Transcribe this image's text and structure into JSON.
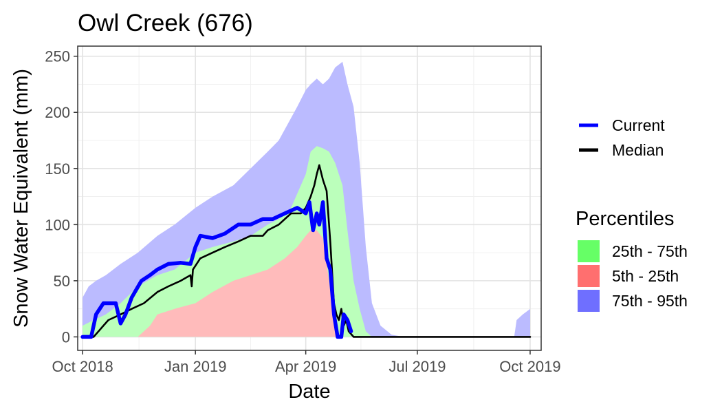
{
  "chart_data": {
    "type": "area",
    "title": "Owl Creek (676)",
    "xlabel": "Date",
    "ylabel": "Snow Water Equivalent (mm)",
    "xlim": [
      "2018-09-27",
      "2019-10-10"
    ],
    "ylim": [
      -12,
      259
    ],
    "x_ticks": [
      {
        "date": "2018-10-01",
        "label": "Oct 2018"
      },
      {
        "date": "2019-01-01",
        "label": "Jan 2019"
      },
      {
        "date": "2019-04-01",
        "label": "Apr 2019"
      },
      {
        "date": "2019-07-01",
        "label": "Jul 2019"
      },
      {
        "date": "2019-10-01",
        "label": "Oct 2019"
      }
    ],
    "y_ticks": [
      0,
      50,
      100,
      150,
      200,
      250
    ],
    "grid": true,
    "legend": {
      "position": "right",
      "lines": [
        {
          "name": "Current",
          "color": "#0000ff"
        },
        {
          "name": "Median",
          "color": "#000000"
        }
      ],
      "percentiles_title": "Percentiles",
      "bands": [
        {
          "name": "25th - 75th",
          "color": "#66ff66"
        },
        {
          "name": "5th - 25th",
          "color": "#ff6f6f"
        },
        {
          "name": "75th - 95th",
          "color": "#6f6fff"
        }
      ]
    },
    "band_upper_95": {
      "x": [
        "2018-10-01",
        "2018-10-06",
        "2018-10-12",
        "2018-10-20",
        "2018-11-01",
        "2018-11-15",
        "2018-12-01",
        "2018-12-15",
        "2019-01-01",
        "2019-01-15",
        "2019-02-01",
        "2019-02-15",
        "2019-03-01",
        "2019-03-10",
        "2019-03-20",
        "2019-03-25",
        "2019-04-01",
        "2019-04-05",
        "2019-04-10",
        "2019-04-15",
        "2019-04-20",
        "2019-04-25",
        "2019-05-01",
        "2019-05-05",
        "2019-05-10",
        "2019-05-15",
        "2019-05-20",
        "2019-05-25",
        "2019-06-01",
        "2019-06-10",
        "2019-06-20",
        "2019-06-30",
        "2019-09-18",
        "2019-09-20",
        "2019-09-25",
        "2019-10-01"
      ],
      "y": [
        35,
        45,
        50,
        55,
        65,
        75,
        90,
        100,
        115,
        125,
        135,
        150,
        165,
        175,
        195,
        205,
        220,
        225,
        230,
        225,
        230,
        240,
        245,
        225,
        205,
        155,
        80,
        30,
        10,
        2,
        0,
        0,
        0,
        15,
        20,
        25
      ]
    },
    "band_upper_75": {
      "x": [
        "2018-10-01",
        "2018-10-10",
        "2018-10-20",
        "2018-11-01",
        "2018-11-15",
        "2018-12-01",
        "2018-12-15",
        "2019-01-01",
        "2019-01-15",
        "2019-02-01",
        "2019-02-15",
        "2019-03-01",
        "2019-03-10",
        "2019-03-20",
        "2019-04-01",
        "2019-04-05",
        "2019-04-10",
        "2019-04-15",
        "2019-04-20",
        "2019-04-25",
        "2019-05-01",
        "2019-05-05",
        "2019-05-10",
        "2019-05-15",
        "2019-05-20",
        "2019-05-25",
        "2019-06-01",
        "2019-06-05"
      ],
      "y": [
        10,
        15,
        20,
        30,
        45,
        55,
        60,
        75,
        80,
        85,
        90,
        100,
        105,
        115,
        145,
        165,
        170,
        168,
        165,
        155,
        135,
        95,
        50,
        25,
        5,
        0,
        0,
        0
      ]
    },
    "band_lower_25": {
      "x": [
        "2018-10-01",
        "2018-11-15",
        "2018-11-25",
        "2018-12-01",
        "2018-12-15",
        "2019-01-01",
        "2019-01-15",
        "2019-02-01",
        "2019-02-15",
        "2019-03-01",
        "2019-03-15",
        "2019-03-25",
        "2019-04-01",
        "2019-04-05",
        "2019-04-10",
        "2019-04-15",
        "2019-04-20",
        "2019-04-25",
        "2019-05-01"
      ],
      "y": [
        0,
        0,
        10,
        20,
        25,
        30,
        40,
        50,
        55,
        60,
        70,
        80,
        90,
        95,
        95,
        88,
        50,
        5,
        0
      ]
    },
    "band_lower_5": {
      "x": [
        "2018-10-01",
        "2019-05-01"
      ],
      "y": [
        0,
        0
      ]
    },
    "series": [
      {
        "name": "Current",
        "color": "#0000ff",
        "x": [
          "2018-10-01",
          "2018-10-08",
          "2018-10-12",
          "2018-10-18",
          "2018-10-28",
          "2018-11-01",
          "2018-11-05",
          "2018-11-10",
          "2018-11-18",
          "2018-11-25",
          "2018-12-01",
          "2018-12-10",
          "2018-12-20",
          "2018-12-28",
          "2019-01-01",
          "2019-01-05",
          "2019-01-15",
          "2019-01-25",
          "2019-02-05",
          "2019-02-15",
          "2019-02-25",
          "2019-03-05",
          "2019-03-15",
          "2019-03-25",
          "2019-03-28",
          "2019-04-01",
          "2019-04-04",
          "2019-04-07",
          "2019-04-10",
          "2019-04-12",
          "2019-04-15",
          "2019-04-18",
          "2019-04-21",
          "2019-04-24",
          "2019-04-27",
          "2019-04-30",
          "2019-05-02",
          "2019-05-05",
          "2019-05-08"
        ],
        "y": [
          0,
          0,
          20,
          30,
          30,
          12,
          20,
          35,
          50,
          55,
          60,
          65,
          66,
          65,
          80,
          90,
          88,
          92,
          100,
          100,
          105,
          105,
          110,
          115,
          113,
          110,
          120,
          95,
          110,
          100,
          120,
          70,
          60,
          20,
          0,
          0,
          20,
          15,
          5
        ]
      },
      {
        "name": "Median",
        "color": "#000000",
        "x": [
          "2018-10-01",
          "2018-10-10",
          "2018-10-14",
          "2018-10-18",
          "2018-10-22",
          "2018-11-01",
          "2018-11-10",
          "2018-11-20",
          "2018-12-01",
          "2018-12-10",
          "2018-12-20",
          "2018-12-28",
          "2018-12-29",
          "2018-12-30",
          "2019-01-05",
          "2019-01-15",
          "2019-01-25",
          "2019-02-05",
          "2019-02-15",
          "2019-02-25",
          "2019-03-01",
          "2019-03-10",
          "2019-03-20",
          "2019-03-28",
          "2019-04-01",
          "2019-04-05",
          "2019-04-08",
          "2019-04-10",
          "2019-04-12",
          "2019-04-15",
          "2019-04-18",
          "2019-04-21",
          "2019-04-24",
          "2019-04-26",
          "2019-04-28",
          "2019-04-30",
          "2019-05-02",
          "2019-05-04",
          "2019-05-06",
          "2019-05-10",
          "2019-06-01",
          "2019-10-01"
        ],
        "y": [
          0,
          0,
          5,
          10,
          15,
          20,
          25,
          30,
          40,
          45,
          50,
          55,
          45,
          60,
          70,
          75,
          80,
          85,
          90,
          90,
          95,
          100,
          110,
          110,
          115,
          125,
          135,
          145,
          153,
          140,
          130,
          85,
          30,
          20,
          15,
          25,
          10,
          15,
          5,
          0,
          0,
          0
        ]
      }
    ]
  }
}
